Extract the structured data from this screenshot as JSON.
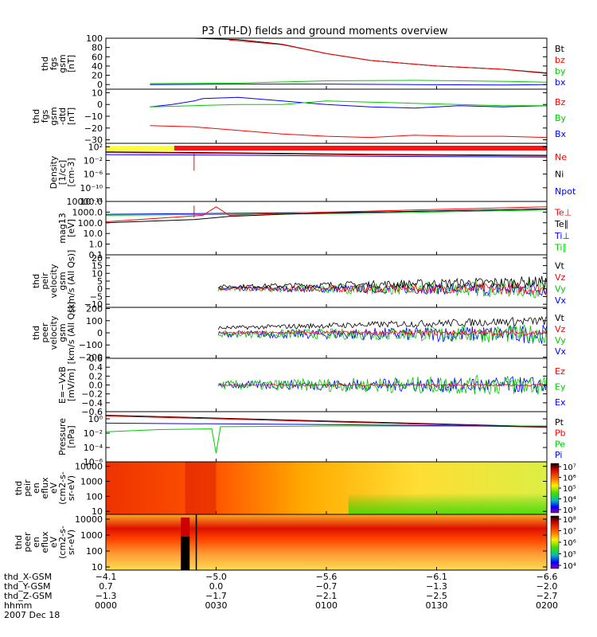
{
  "title": "P3 (TH-D) fields and ground moments overview",
  "chart_data": {
    "type": "line",
    "time_range": [
      "0000",
      "0200"
    ],
    "panels": [
      {
        "id": "fgs-gsm",
        "ylabel": [
          "thd",
          "fgs",
          "gsm",
          "[nT]"
        ],
        "ylim": [
          -10,
          100
        ],
        "log": false,
        "ticks": [
          "100",
          "80",
          "60",
          "40",
          "20",
          "0"
        ],
        "tick_values": [
          100,
          80,
          60,
          40,
          20,
          0
        ],
        "legend": [
          {
            "label": "Bt",
            "color": "#000000"
          },
          {
            "label": "bz",
            "color": "#ff0000"
          },
          {
            "label": "by",
            "color": "#00cc00"
          },
          {
            "label": "bx",
            "color": "#0000ff"
          }
        ],
        "series": [
          {
            "color": "#000000",
            "t": [
              0.2,
              0.3,
              0.4,
              0.5,
              0.6,
              0.75,
              0.9,
              1.0
            ],
            "v": [
              100,
              97,
              87,
              67,
              52,
              40,
              33,
              25
            ]
          },
          {
            "color": "#ff0000",
            "t": [
              0.28,
              0.4,
              0.5,
              0.6,
              0.75,
              0.9,
              1.0
            ],
            "v": [
              96,
              86,
              67,
              52,
              40,
              33,
              24
            ]
          },
          {
            "color": "#00cc00",
            "t": [
              0.1,
              0.3,
              0.5,
              0.7,
              0.9,
              1.0
            ],
            "v": [
              2,
              3,
              8,
              9,
              7,
              5
            ]
          },
          {
            "color": "#0000ff",
            "t": [
              0.1,
              0.3,
              0.5,
              0.7,
              0.9,
              1.0
            ],
            "v": [
              0,
              1,
              1,
              0,
              -1,
              0
            ]
          }
        ]
      },
      {
        "id": "fgs-gse",
        "ylabel": [
          "thd",
          "fgs",
          "gsm",
          "-dtd",
          "[nT]"
        ],
        "ylim": [
          -33,
          13
        ],
        "log": false,
        "ticks": [
          "10",
          "0",
          "−10",
          "−20",
          "−30"
        ],
        "tick_values": [
          10,
          0,
          -10,
          -20,
          -30
        ],
        "legend": [
          {
            "label": "Bz",
            "color": "#ff0000"
          },
          {
            "label": "By",
            "color": "#00cc00"
          },
          {
            "label": "Bx",
            "color": "#0000ff"
          }
        ],
        "series": [
          {
            "color": "#0000ff",
            "t": [
              0.1,
              0.15,
              0.2,
              0.22,
              0.3,
              0.4,
              0.5,
              0.6,
              0.7,
              0.8,
              0.9,
              1.0
            ],
            "v": [
              -2,
              0,
              3,
              5,
              6,
              3,
              0,
              -2,
              -3,
              -1,
              -2,
              -1
            ]
          },
          {
            "color": "#00cc00",
            "t": [
              0.1,
              0.2,
              0.3,
              0.4,
              0.5,
              0.6,
              0.7,
              0.8,
              0.9,
              1.0
            ],
            "v": [
              -2,
              -1,
              0,
              0,
              3,
              2,
              1,
              0,
              -1,
              -1
            ]
          },
          {
            "color": "#ff0000",
            "t": [
              0.1,
              0.2,
              0.3,
              0.4,
              0.5,
              0.6,
              0.7,
              0.8,
              0.9,
              1.0
            ],
            "v": [
              -18,
              -19,
              -22,
              -25,
              -27,
              -28,
              -26,
              -27,
              -27,
              -28
            ]
          }
        ]
      },
      {
        "id": "density",
        "ylabel": [
          "Density",
          "[1/cc]",
          "[cm-3]"
        ],
        "ylim": [
          -14,
          3
        ],
        "log": true,
        "ticks": [
          "10²",
          "10⁻²",
          "10⁻⁶",
          "10⁻¹⁰",
          "10⁻¹⁴"
        ],
        "tick_values": [
          2,
          -2,
          -6,
          -10,
          -14
        ],
        "legend": [
          {
            "label": "Ne",
            "color": "#ff0000"
          },
          {
            "label": "Ni",
            "color": "#000000"
          },
          {
            "label": "Npot",
            "color": "#0000ff"
          }
        ],
        "series": [
          {
            "color": "#000000",
            "t": [
              0.0,
              0.3,
              0.6,
              1.0
            ],
            "v": [
              0.5,
              0.2,
              -0.2,
              -0.5
            ]
          },
          {
            "color": "#ff0000",
            "t": [
              0.0,
              0.3,
              0.6,
              1.0
            ],
            "v": [
              0.3,
              0.0,
              -0.4,
              -0.7
            ]
          },
          {
            "color": "#0000ff",
            "t": [
              0.0,
              0.3,
              0.6,
              1.0
            ],
            "v": [
              -0.3,
              -0.5,
              -0.8,
              -1.0
            ]
          }
        ]
      },
      {
        "id": "temperature",
        "ylabel": [
          "mag13",
          "[eV]"
        ],
        "ylim": [
          -1,
          4
        ],
        "log": true,
        "ticks": [
          "10000.0",
          "1000.0",
          "100.0",
          "10.0",
          "1.0",
          "0.1"
        ],
        "tick_values": [
          4,
          3,
          2,
          1,
          0,
          -1
        ],
        "legend": [
          {
            "label": "Te⊥",
            "color": "#ff0000"
          },
          {
            "label": "Te∥",
            "color": "#000000"
          },
          {
            "label": "Ti⊥",
            "color": "#0000ff"
          },
          {
            "label": "Ti∥",
            "color": "#00cc00"
          }
        ],
        "series": [
          {
            "color": "#0000ff",
            "t": [
              0.0,
              0.3,
              0.6,
              1.0
            ],
            "v": [
              2.8,
              2.9,
              3.0,
              3.3
            ]
          },
          {
            "color": "#00cc00",
            "t": [
              0.0,
              0.3,
              0.6,
              1.0
            ],
            "v": [
              2.7,
              2.8,
              2.9,
              3.2
            ]
          },
          {
            "color": "#ff0000",
            "t": [
              0.0,
              0.22,
              0.25,
              0.28,
              0.4,
              0.6,
              1.0
            ],
            "v": [
              2.1,
              2.7,
              3.5,
              2.7,
              2.9,
              3.1,
              3.5
            ]
          },
          {
            "color": "#000000",
            "t": [
              0.0,
              0.2,
              0.28,
              0.4,
              0.6,
              1.0
            ],
            "v": [
              2.0,
              2.3,
              2.6,
              2.8,
              3.0,
              3.3
            ]
          }
        ]
      },
      {
        "id": "peir-velocity",
        "ylabel": [
          "thd",
          "peir",
          "velocity",
          "gsm",
          "[km/s (All Qs)]"
        ],
        "ylim": [
          -12,
          22
        ],
        "log": false,
        "ticks": [
          "20",
          "15",
          "10",
          "5",
          "0",
          "−5",
          "−10"
        ],
        "tick_values": [
          20,
          15,
          10,
          5,
          0,
          -5,
          -10
        ],
        "legend": [
          {
            "label": "Vt",
            "color": "#000000"
          },
          {
            "label": "Vz",
            "color": "#ff0000"
          },
          {
            "label": "Vy",
            "color": "#00cc00"
          },
          {
            "label": "Vx",
            "color": "#0000ff"
          }
        ],
        "series": []
      },
      {
        "id": "peer-velocity",
        "ylabel": [
          "thd",
          "peer",
          "velocity",
          "gsm",
          "[km/s (All Qs)]"
        ],
        "ylim": [
          -210,
          210
        ],
        "log": false,
        "ticks": [
          "200",
          "100",
          "0",
          "−100",
          "−200"
        ],
        "tick_values": [
          200,
          100,
          0,
          -100,
          -200
        ],
        "legend": [
          {
            "label": "Vt",
            "color": "#000000"
          },
          {
            "label": "Vz",
            "color": "#ff0000"
          },
          {
            "label": "Vy",
            "color": "#00cc00"
          },
          {
            "label": "Vx",
            "color": "#0000ff"
          }
        ],
        "series": []
      },
      {
        "id": "e-field",
        "ylabel": [
          "E=−VxB",
          "[mV/m]"
        ],
        "ylim": [
          -0.6,
          0.6
        ],
        "log": false,
        "ticks": [
          "0.6",
          "0.4",
          "0.2",
          "0.0",
          "−0.2",
          "−0.4",
          "−0.6"
        ],
        "tick_values": [
          0.6,
          0.4,
          0.2,
          0.0,
          -0.2,
          -0.4,
          -0.6
        ],
        "legend": [
          {
            "label": "Ez",
            "color": "#ff0000"
          },
          {
            "label": "Ey",
            "color": "#00cc00"
          },
          {
            "label": "Ex",
            "color": "#0000ff"
          }
        ],
        "series": []
      },
      {
        "id": "pressure",
        "ylabel": [
          "Pressure",
          "[nPa]"
        ],
        "ylim": [
          -6,
          1
        ],
        "log": true,
        "ticks": [
          "10⁰",
          "10⁻²",
          "10⁻⁴",
          "10⁻⁶"
        ],
        "tick_values": [
          0,
          -2,
          -4,
          -6
        ],
        "legend": [
          {
            "label": "Pt",
            "color": "#000000"
          },
          {
            "label": "Pb",
            "color": "#ff0000"
          },
          {
            "label": "Pe",
            "color": "#00cc00"
          },
          {
            "label": "Pi",
            "color": "#0000ff"
          }
        ],
        "series": [
          {
            "color": "#000000",
            "t": [
              0.0,
              0.5,
              1.0
            ],
            "v": [
              0.5,
              -0.3,
              -1.1
            ]
          },
          {
            "color": "#ff0000",
            "t": [
              0.0,
              0.5,
              1.0
            ],
            "v": [
              0.4,
              -0.4,
              -1.2
            ]
          },
          {
            "color": "#00cc00",
            "t": [
              0.0,
              0.12,
              0.24,
              0.25,
              0.26,
              0.5,
              1.0
            ],
            "v": [
              -1.8,
              -1.5,
              -1.4,
              -4.8,
              -1.1,
              -1.0,
              -1.0
            ]
          },
          {
            "color": "#0000ff",
            "t": [
              0.0,
              0.5,
              1.0
            ],
            "v": [
              -0.6,
              -0.8,
              -1.1
            ]
          }
        ]
      },
      {
        "id": "peir-spec",
        "ylabel": [
          "thd",
          "peir",
          "en",
          "eflux",
          "eV",
          "(cm2-s-",
          "sr-eV)"
        ],
        "ylim": [
          0.8,
          4.3
        ],
        "log": true,
        "ticks": [
          "10000",
          "1000",
          "100",
          "10"
        ],
        "tick_values": [
          4,
          3,
          2,
          1
        ],
        "colorbar": [
          "10⁷",
          "10⁶",
          "10⁵",
          "10⁴",
          "10³"
        ],
        "series": []
      },
      {
        "id": "peer-spec",
        "ylabel": [
          "thd",
          "peer",
          "en",
          "eflux",
          "eV",
          "(cm2-s-",
          "sr-eV)"
        ],
        "ylim": [
          0.8,
          4.3
        ],
        "log": true,
        "ticks": [
          "10000",
          "1000",
          "100",
          "10"
        ],
        "tick_values": [
          4,
          3,
          2,
          1
        ],
        "colorbar": [
          "10⁸",
          "10⁷",
          "10⁶",
          "10⁵",
          "10⁴"
        ],
        "series": []
      }
    ],
    "x_axis": {
      "labels": [
        "thd_X-GSM",
        "thd_Y-GSM",
        "thd_Z-GSM",
        "hhmm",
        "2007 Dec 18"
      ],
      "ticks": [
        {
          "t": 0.0,
          "x": "−4.1",
          "y": "0.7",
          "z": "−1.3",
          "time": "0000"
        },
        {
          "t": 0.25,
          "x": "−5.0",
          "y": "0.0",
          "z": "−1.7",
          "time": "0030"
        },
        {
          "t": 0.5,
          "x": "−5.6",
          "y": "−0.7",
          "z": "−2.1",
          "time": "0100"
        },
        {
          "t": 0.75,
          "x": "−6.1",
          "y": "−1.3",
          "z": "−2.5",
          "time": "0130"
        },
        {
          "t": 1.0,
          "x": "−6.6",
          "y": "−2.0",
          "z": "−2.7",
          "time": "0200"
        }
      ]
    }
  }
}
